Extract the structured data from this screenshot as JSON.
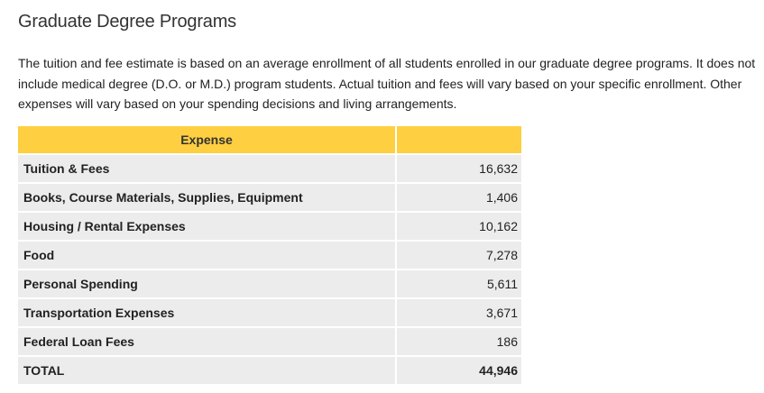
{
  "header": {
    "title": "Graduate Degree Programs"
  },
  "intro": "The tuition and fee estimate is based on an average enrollment of all students enrolled in our graduate degree programs. It does not include medical degree (D.O. or M.D.) program students. Actual tuition and fees will vary based on your specific enrollment. Other expenses will vary based on your spending decisions and living arrangements.",
  "table": {
    "columns": [
      "Expense"
    ],
    "rows": [
      [
        "Tuition & Fees",
        "16,632"
      ],
      [
        "Books, Course Materials, Supplies, Equipment",
        "1,406"
      ],
      [
        "Housing / Rental Expenses",
        "10,162"
      ],
      [
        "Food",
        "7,278"
      ],
      [
        "Personal Spending",
        "5,611"
      ],
      [
        "Transportation Expenses",
        "3,671"
      ],
      [
        "Federal Loan Fees",
        "186"
      ],
      [
        "TOTAL",
        "44,946"
      ]
    ]
  }
}
